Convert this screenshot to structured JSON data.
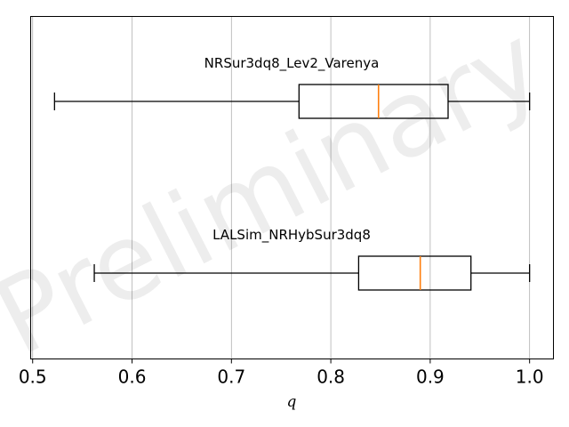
{
  "chart_data": {
    "type": "boxplot",
    "orientation": "horizontal",
    "xlabel": "q",
    "xlim": [
      0.498,
      1.024
    ],
    "xticks": [
      0.5,
      0.6,
      0.7,
      0.8,
      0.9,
      1.0
    ],
    "xtick_labels": [
      "0.5",
      "0.6",
      "0.7",
      "0.8",
      "0.9",
      "1.0"
    ],
    "grid": "vertical",
    "watermark": "Preliminary",
    "colors": {
      "box": "#000000",
      "median": "#ff7f0e",
      "grid": "#b0b0b0"
    },
    "series": [
      {
        "name": "NRSur3dq8_Lev2_Varenya",
        "whisker_low": 0.522,
        "q1": 0.768,
        "median": 0.848,
        "q3": 0.918,
        "whisker_high": 1.0
      },
      {
        "name": "LALSim_NRHybSur3dq8",
        "whisker_low": 0.562,
        "q1": 0.828,
        "median": 0.89,
        "q3": 0.941,
        "whisker_high": 1.0
      }
    ]
  }
}
